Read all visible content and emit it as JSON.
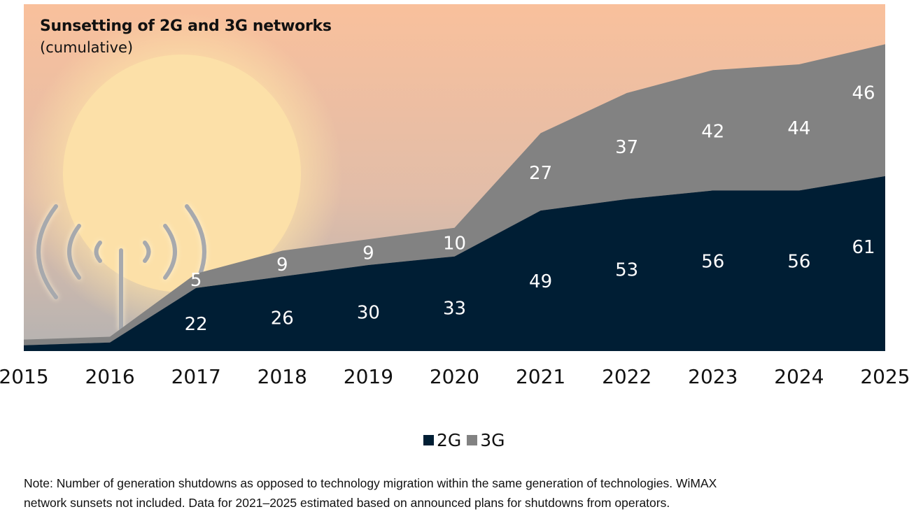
{
  "chart_data": {
    "type": "area",
    "stacked": true,
    "title": "Sunsetting of 2G and 3G networks",
    "subtitle": "(cumulative)",
    "xlabel": "",
    "ylabel": "",
    "categories": [
      "2015",
      "2016",
      "2017",
      "2018",
      "2019",
      "2020",
      "2021",
      "2022",
      "2023",
      "2024",
      "2025"
    ],
    "series": [
      {
        "name": "2G",
        "color": "#001e34",
        "values": [
          2,
          3,
          22,
          26,
          30,
          33,
          49,
          53,
          56,
          56,
          61
        ],
        "labels": [
          "",
          "",
          "22",
          "26",
          "30",
          "33",
          "49",
          "53",
          "56",
          "56",
          "61"
        ]
      },
      {
        "name": "3G",
        "color": "#828282",
        "values": [
          2,
          2,
          5,
          9,
          9,
          10,
          27,
          37,
          42,
          44,
          46
        ],
        "labels": [
          "",
          "",
          "5",
          "9",
          "9",
          "10",
          "27",
          "37",
          "42",
          "44",
          "46"
        ]
      }
    ],
    "ylim": [
      0,
      110
    ],
    "grid": false,
    "legend_position": "bottom-center"
  },
  "legend": [
    {
      "label": "2G",
      "color": "#001e34"
    },
    {
      "label": "3G",
      "color": "#828282"
    }
  ],
  "background": {
    "sky_top": "#f9c09c",
    "sky_bottom": "#b9b5b3",
    "sun": "#fce1a8",
    "antenna": "#a7a9ad"
  },
  "note": {
    "line1": "Note: Number of generation shutdowns as opposed to technology migration within the same generation of technologies. WiMAX",
    "line2": "network sunsets not included. Data for 2021–2025 estimated based on announced plans for shutdowns from operators."
  }
}
